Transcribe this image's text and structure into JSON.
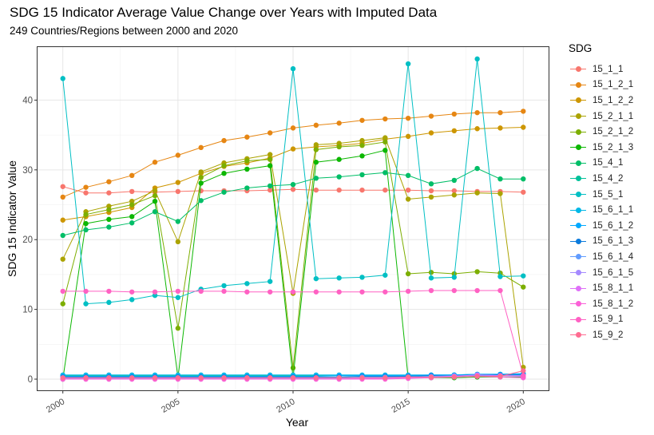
{
  "chart_data": {
    "type": "line",
    "title": "SDG 15 Indicator Average Value Change over Years with Imputed Data",
    "subtitle": "249 Countries/Regions between 2000 and 2020",
    "xlabel": "Year",
    "ylabel": "SDG 15 Indicator Value",
    "x": [
      2000,
      2001,
      2002,
      2003,
      2004,
      2005,
      2006,
      2007,
      2008,
      2009,
      2010,
      2011,
      2012,
      2013,
      2014,
      2015,
      2016,
      2017,
      2018,
      2019,
      2020
    ],
    "xlim": [
      1998.9,
      2021.1
    ],
    "ylim": [
      -1.6,
      47.6
    ],
    "xticks": [
      2000,
      2005,
      2010,
      2015,
      2020
    ],
    "yticks": [
      0,
      10,
      20,
      30,
      40
    ],
    "grid": true,
    "legend_title": "SDG",
    "legend_position": "right",
    "series": [
      {
        "name": "15_1_1",
        "color": "#F8766D",
        "values": [
          27.6,
          26.7,
          26.7,
          26.9,
          26.8,
          26.9,
          27.0,
          27.0,
          27.0,
          27.1,
          27.2,
          27.1,
          27.1,
          27.1,
          27.1,
          27.1,
          27.0,
          27.0,
          26.9,
          26.9,
          26.8
        ]
      },
      {
        "name": "15_1_2_1",
        "color": "#E68613",
        "values": [
          26.1,
          27.5,
          28.3,
          29.2,
          31.1,
          32.1,
          33.2,
          34.2,
          34.7,
          35.3,
          36.0,
          36.4,
          36.7,
          37.1,
          37.3,
          37.4,
          37.7,
          38.0,
          38.2,
          38.2,
          38.4
        ]
      },
      {
        "name": "15_1_2_2",
        "color": "#CD9600",
        "values": [
          22.8,
          23.3,
          23.9,
          24.6,
          27.4,
          28.2,
          29.5,
          30.5,
          31.0,
          31.7,
          33.0,
          33.3,
          33.5,
          33.8,
          34.4,
          34.8,
          35.3,
          35.6,
          35.9,
          36.0,
          36.1
        ]
      },
      {
        "name": "15_2_1_1",
        "color": "#ABA300",
        "values": [
          17.2,
          24.0,
          24.8,
          25.5,
          27.0,
          19.7,
          29.7,
          31.0,
          31.6,
          32.2,
          12.3,
          33.6,
          33.8,
          34.2,
          34.6,
          25.8,
          26.1,
          26.4,
          26.7,
          26.6,
          1.7
        ]
      },
      {
        "name": "15_2_1_2",
        "color": "#7CAE00",
        "values": [
          10.8,
          23.6,
          24.3,
          25.0,
          26.3,
          7.3,
          28.9,
          30.6,
          31.3,
          31.5,
          1.6,
          32.9,
          33.3,
          33.5,
          34.0,
          15.1,
          15.3,
          15.1,
          15.4,
          15.2,
          13.2
        ]
      },
      {
        "name": "15_2_1_3",
        "color": "#0CB702",
        "values": [
          0.0,
          22.3,
          22.9,
          23.3,
          25.5,
          0.2,
          28.1,
          29.5,
          30.1,
          30.6,
          0.2,
          31.1,
          31.5,
          32.0,
          32.8,
          0.2,
          0.2,
          0.2,
          0.3,
          0.3,
          0.3
        ]
      },
      {
        "name": "15_4_1",
        "color": "#00BE67",
        "values": [
          20.6,
          21.4,
          21.8,
          22.4,
          24.0,
          22.6,
          25.6,
          26.8,
          27.4,
          27.7,
          27.9,
          28.8,
          29.0,
          29.3,
          29.6,
          29.2,
          28.0,
          28.5,
          30.2,
          28.7,
          28.7
        ]
      },
      {
        "name": "15_4_2",
        "color": "#00C19A",
        "values": [
          0.5,
          0.5,
          0.5,
          0.5,
          0.5,
          0.5,
          0.5,
          0.5,
          0.5,
          0.5,
          0.5,
          0.5,
          0.5,
          0.5,
          0.5,
          0.5,
          0.5,
          0.6,
          0.6,
          0.6,
          0.6
        ]
      },
      {
        "name": "15_5_1",
        "color": "#00BFC4",
        "values": [
          43.1,
          10.8,
          11.0,
          11.4,
          12.0,
          11.7,
          12.9,
          13.4,
          13.7,
          14.0,
          44.5,
          14.4,
          14.5,
          14.6,
          14.9,
          45.2,
          14.5,
          14.6,
          45.9,
          14.7,
          14.8
        ]
      },
      {
        "name": "15_6_1_1",
        "color": "#00B8E7",
        "values": [
          0.6,
          0.6,
          0.6,
          0.6,
          0.6,
          0.6,
          0.6,
          0.6,
          0.6,
          0.6,
          0.6,
          0.6,
          0.6,
          0.6,
          0.6,
          0.6,
          0.6,
          0.6,
          0.7,
          0.7,
          0.7
        ]
      },
      {
        "name": "15_6_1_2",
        "color": "#00A9FF",
        "values": [
          0.4,
          0.4,
          0.4,
          0.4,
          0.4,
          0.4,
          0.4,
          0.4,
          0.4,
          0.4,
          0.4,
          0.4,
          0.5,
          0.5,
          0.5,
          0.5,
          0.6,
          0.6,
          0.7,
          0.7,
          0.8
        ]
      },
      {
        "name": "15_6_1_3",
        "color": "#0C7BDC",
        "values": [
          0.3,
          0.3,
          0.3,
          0.3,
          0.3,
          0.3,
          0.3,
          0.3,
          0.3,
          0.3,
          0.3,
          0.3,
          0.3,
          0.4,
          0.4,
          0.4,
          0.5,
          0.5,
          0.6,
          0.6,
          0.6
        ]
      },
      {
        "name": "15_6_1_4",
        "color": "#619CFF",
        "values": [
          0.2,
          0.2,
          0.2,
          0.2,
          0.2,
          0.2,
          0.2,
          0.2,
          0.2,
          0.2,
          0.2,
          0.2,
          0.2,
          0.3,
          0.3,
          0.3,
          0.4,
          0.5,
          0.5,
          0.5,
          0.5
        ]
      },
      {
        "name": "15_6_1_5",
        "color": "#A58AFF",
        "values": [
          0.1,
          0.1,
          0.1,
          0.1,
          0.1,
          0.1,
          0.1,
          0.1,
          0.1,
          0.1,
          0.1,
          0.1,
          0.1,
          0.1,
          0.2,
          0.2,
          0.3,
          0.4,
          0.6,
          0.5,
          0.5
        ]
      },
      {
        "name": "15_8_1_1",
        "color": "#DF70F8",
        "values": [
          0.0,
          0.0,
          0.0,
          0.0,
          0.0,
          0.0,
          0.0,
          0.0,
          0.0,
          0.0,
          0.0,
          0.0,
          0.0,
          0.1,
          0.1,
          0.2,
          0.3,
          0.4,
          0.6,
          0.5,
          0.4
        ]
      },
      {
        "name": "15_8_1_2",
        "color": "#FB61D7",
        "values": [
          0.0,
          0.0,
          0.0,
          0.0,
          0.0,
          0.0,
          0.0,
          0.0,
          0.0,
          0.0,
          0.0,
          0.0,
          0.0,
          0.0,
          0.0,
          0.1,
          0.2,
          0.3,
          0.4,
          0.3,
          0.2
        ]
      },
      {
        "name": "15_9_1",
        "color": "#FF61C3",
        "values": [
          12.6,
          12.6,
          12.6,
          12.5,
          12.5,
          12.6,
          12.6,
          12.6,
          12.5,
          12.5,
          12.5,
          12.5,
          12.5,
          12.5,
          12.5,
          12.6,
          12.7,
          12.7,
          12.7,
          12.7,
          0.5
        ]
      },
      {
        "name": "15_9_2",
        "color": "#FF6C91",
        "values": [
          0.2,
          0.2,
          0.2,
          0.2,
          0.2,
          0.2,
          0.2,
          0.2,
          0.2,
          0.2,
          0.2,
          0.2,
          0.2,
          0.2,
          0.2,
          0.3,
          0.3,
          0.3,
          0.4,
          0.4,
          1.2
        ]
      }
    ]
  }
}
